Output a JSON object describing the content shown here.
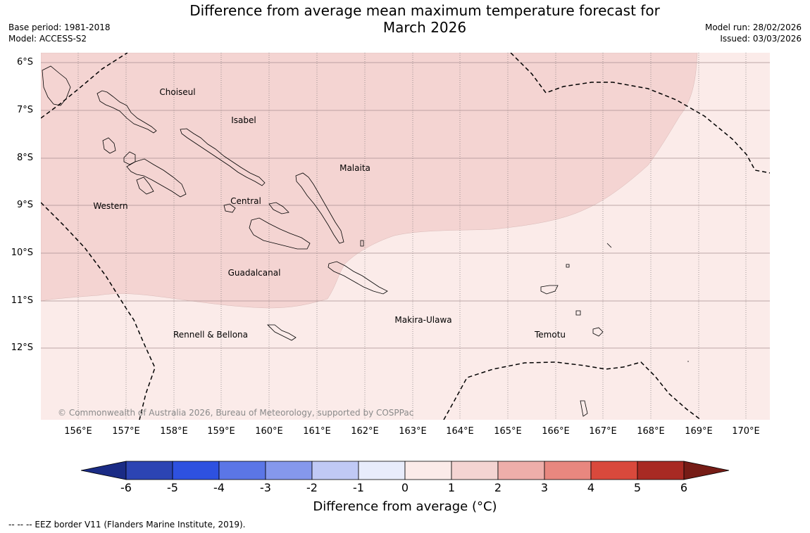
{
  "title": {
    "line1": "Difference from average mean maximum temperature forecast for",
    "line2": "March 2026"
  },
  "meta": {
    "base_period": "Base period: 1981-2018",
    "model": "Model: ACCESS-S2",
    "model_run": "Model run: 28/02/2026",
    "issued": "Issued: 03/03/2026"
  },
  "map": {
    "lat_labels": [
      "6°S",
      "7°S",
      "8°S",
      "9°S",
      "10°S",
      "11°S",
      "12°S"
    ],
    "lon_labels": [
      "156°E",
      "157°E",
      "158°E",
      "159°E",
      "160°E",
      "161°E",
      "162°E",
      "163°E",
      "164°E",
      "165°E",
      "166°E",
      "167°E",
      "168°E",
      "169°E",
      "170°E"
    ],
    "regions": [
      "Choiseul",
      "Isabel",
      "Malaita",
      "Western",
      "Central",
      "Guadalcanal",
      "Makira-Ulawa",
      "Rennell & Bellona",
      "Temotu"
    ],
    "zones": [
      {
        "category": "1 to 2",
        "color": "#f4d4d2"
      },
      {
        "category": "0 to 1",
        "color": "#fbebe9"
      }
    ],
    "copyright": "© Commonwealth of Australia 2026, Bureau of Meteorology, supported by COSPPac"
  },
  "colorbar": {
    "ticks": [
      "-6",
      "-5",
      "-4",
      "-3",
      "-2",
      "-1",
      "0",
      "1",
      "2",
      "3",
      "4",
      "5",
      "6"
    ],
    "colors": [
      "#1a2b85",
      "#2c44b3",
      "#2e51e0",
      "#5b76e6",
      "#8598ec",
      "#c0c9f5",
      "#e8ecfb",
      "#fbebe9",
      "#f4d4d2",
      "#eeaeaa",
      "#e8877f",
      "#d9493c",
      "#a82a23",
      "#761c16"
    ],
    "label": "Difference from average (°C)"
  },
  "footnote": "--  --  -- EEZ border V11 (Flanders Marine Institute, 2019)."
}
